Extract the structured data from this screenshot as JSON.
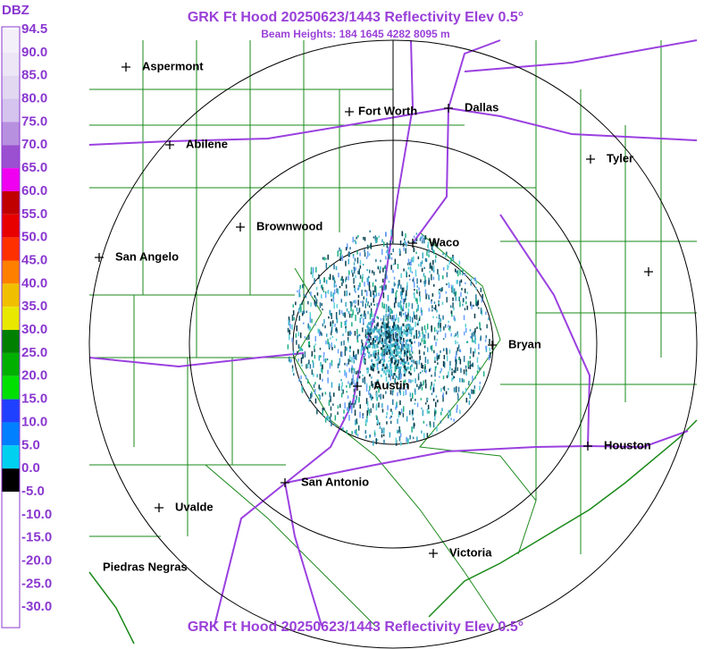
{
  "header": {
    "title": "GRK Ft Hood 20250623/1443 Reflectivity Elev 0.5°",
    "subtitle": "Beam Heights: 184 1645 4282 8095 m"
  },
  "footer": {
    "title": "GRK Ft Hood 20250623/1443 Reflectivity Elev 0.5°"
  },
  "legend": {
    "title": "DBZ",
    "labels": [
      "94.5",
      "90.0",
      "85.0",
      "80.0",
      "75.0",
      "70.0",
      "65.0",
      "60.0",
      "55.0",
      "50.0",
      "45.0",
      "40.0",
      "35.0",
      "30.0",
      "25.0",
      "20.0",
      "15.0",
      "10.0",
      "5.0",
      "0.0",
      "-5.0",
      "-10.0",
      "-15.0",
      "-20.0",
      "-25.0",
      "-30.0"
    ],
    "colors": [
      "#f4f0fa",
      "#ece6f6",
      "#e2d8f2",
      "#d4c4ee",
      "#b890e0",
      "#9a50d0",
      "#f000f0",
      "#c00000",
      "#e80000",
      "#ff3000",
      "#ff8000",
      "#f0c000",
      "#e8e800",
      "#008000",
      "#00b000",
      "#00e000",
      "#2040ff",
      "#0080ff",
      "#00d0f0",
      "#000000",
      "#ffffff",
      "#ffffff",
      "#ffffff",
      "#ffffff",
      "#ffffff"
    ]
  },
  "cities": [
    "Aspermont",
    "Fort Worth",
    "Dallas",
    "Abilene",
    "Tyler",
    "Brownwood",
    "Waco",
    "San Angelo",
    "Bryan",
    "Austin",
    "Houston",
    "San Antonio",
    "Uvalde",
    "Victoria",
    "Piedras Negras"
  ]
}
